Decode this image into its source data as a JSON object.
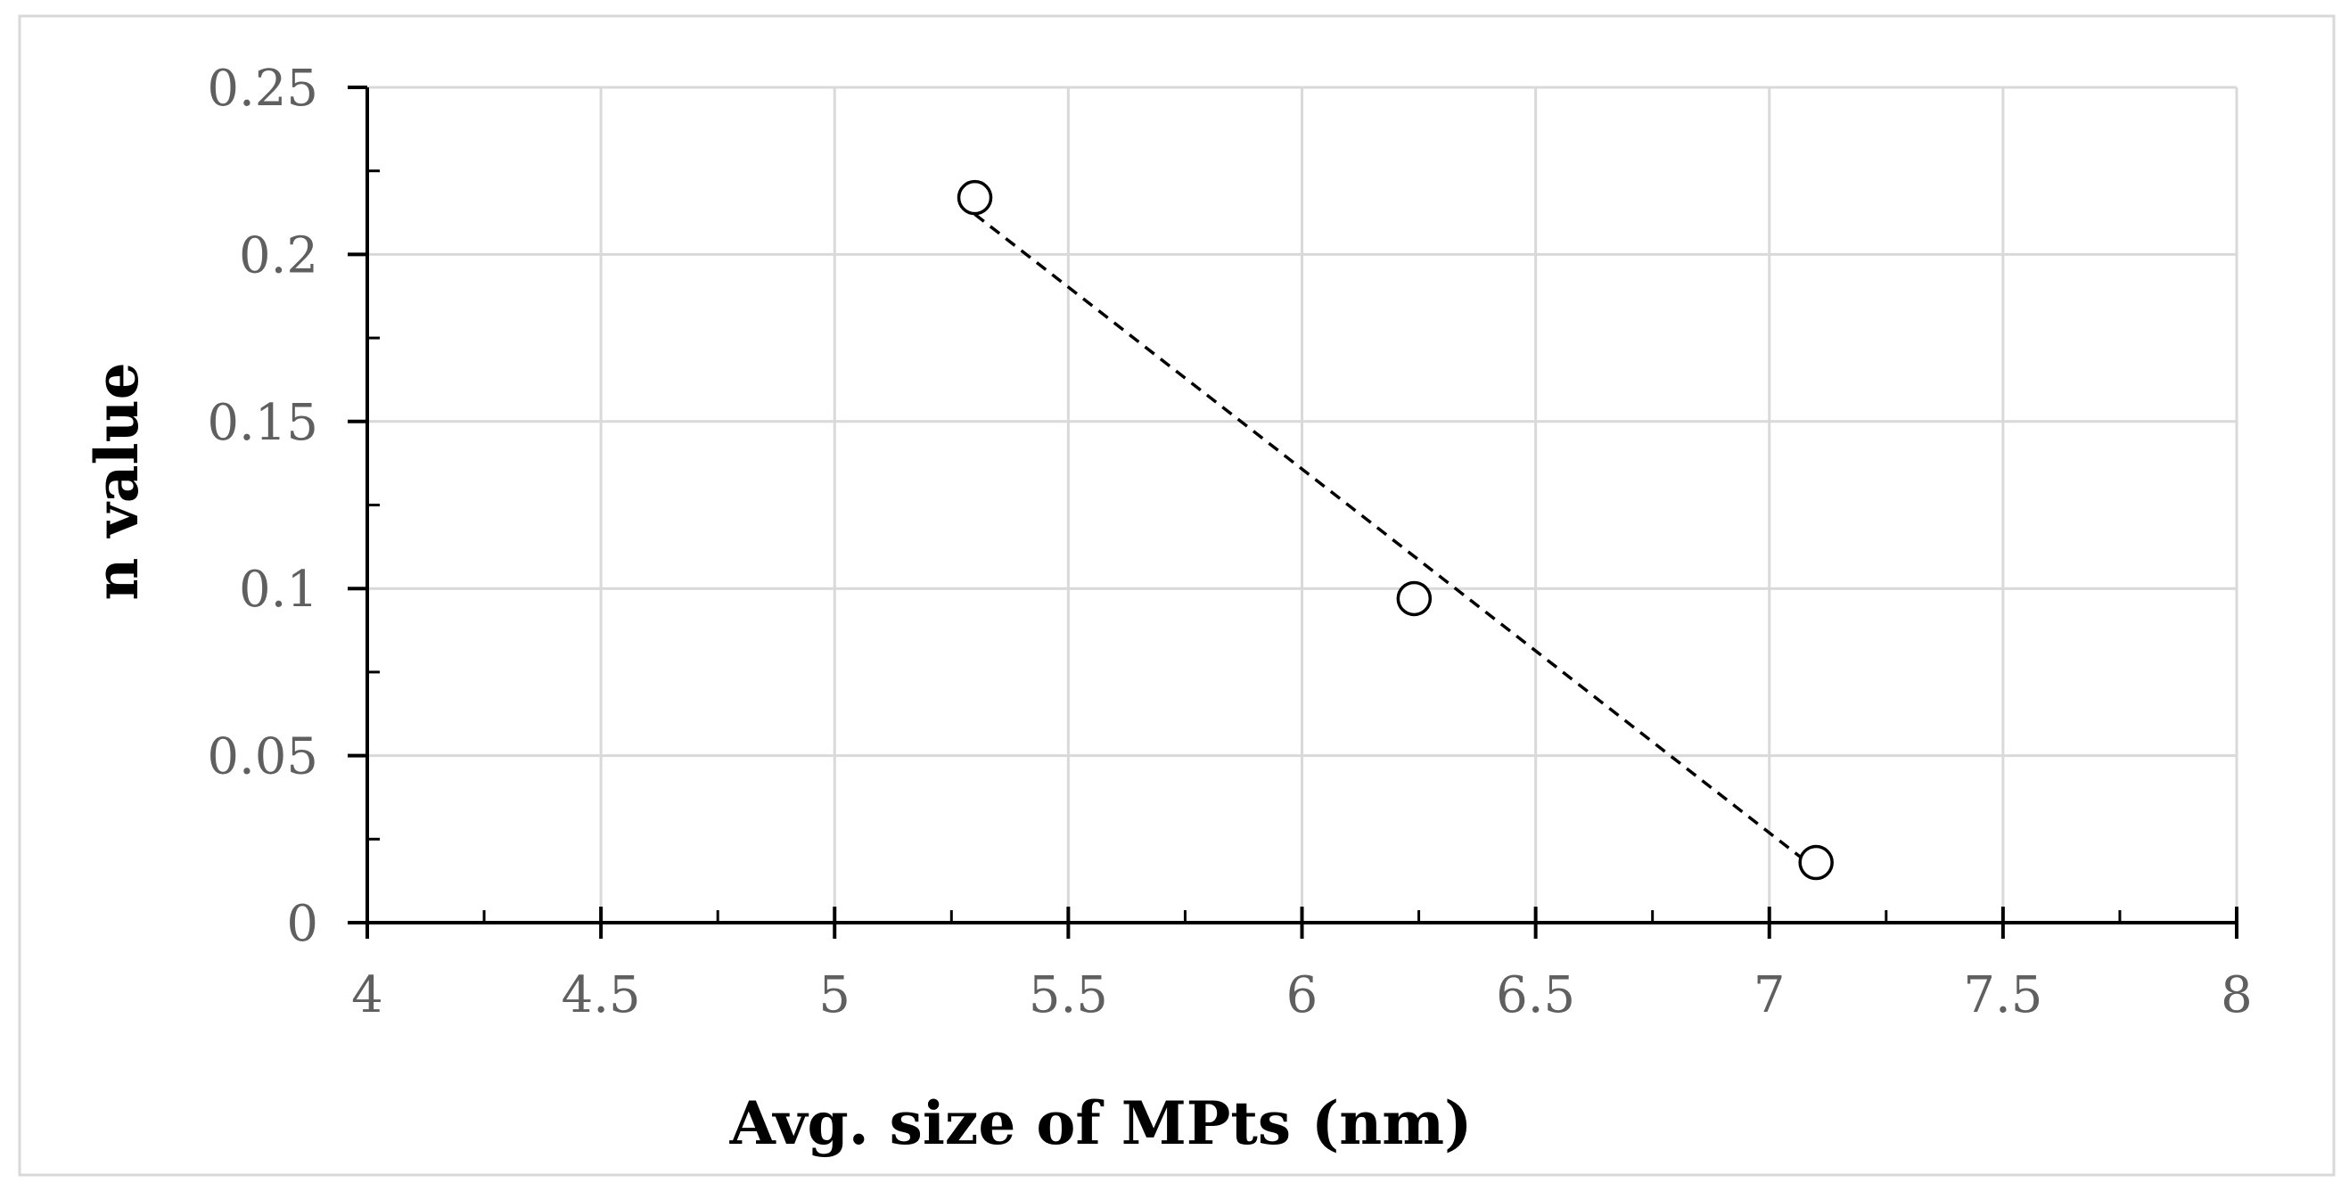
{
  "chart_data": {
    "type": "scatter",
    "xlabel": "Avg. size of MPts (nm)",
    "ylabel": "n value",
    "xlim": [
      4,
      8
    ],
    "ylim": [
      0,
      0.25
    ],
    "x_ticks": [
      4,
      4.5,
      5,
      5.5,
      6,
      6.5,
      7,
      7.5,
      8
    ],
    "x_tick_labels": [
      "4",
      "4.5",
      "5",
      "5.5",
      "6",
      "6.5",
      "7",
      "7.5",
      "8"
    ],
    "y_ticks": [
      0,
      0.05,
      0.1,
      0.15,
      0.2,
      0.25
    ],
    "y_tick_labels": [
      "0",
      "0.05",
      "0.1",
      "0.15",
      "0.2",
      "0.25"
    ],
    "grid": true,
    "legend": "none",
    "series": [
      {
        "marker": "open-circle",
        "points": [
          {
            "x": 5.3,
            "y": 0.217
          },
          {
            "x": 6.24,
            "y": 0.097
          },
          {
            "x": 7.1,
            "y": 0.018
          }
        ]
      }
    ],
    "trendline": {
      "style": "dashed",
      "kind": "linear",
      "x": [
        5.3,
        7.1
      ],
      "y": [
        0.212,
        0.016
      ]
    },
    "colors": {
      "grid": "#d9d9d9",
      "axis": "#000000",
      "marker_edge": "#000000",
      "tick_label": "#5f5f5f",
      "frame": "#d9d9d9"
    }
  }
}
